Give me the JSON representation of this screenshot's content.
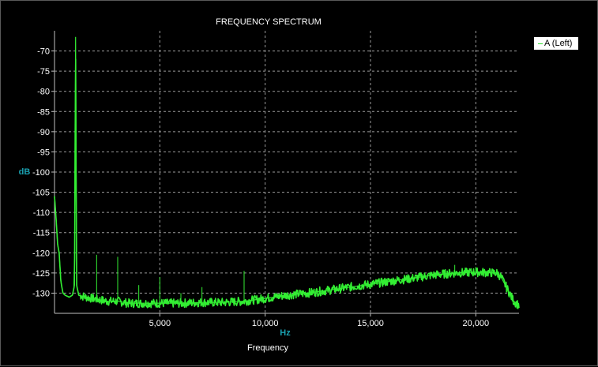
{
  "chart_data": {
    "type": "line",
    "title": "FREQUENCY SPECTRUM",
    "xlabel": "Frequency",
    "x_unit": "Hz",
    "ylabel": "dB",
    "xlim": [
      0,
      22050
    ],
    "ylim": [
      -135,
      -65
    ],
    "x_ticks": [
      5000,
      10000,
      15000,
      20000
    ],
    "x_tick_labels": [
      "5,000",
      "10,000",
      "15,000",
      "20,000"
    ],
    "y_ticks": [
      -70,
      -75,
      -80,
      -85,
      -90,
      -95,
      -100,
      -105,
      -110,
      -115,
      -120,
      -125,
      -130
    ],
    "y_tick_labels": [
      "-70",
      "-75",
      "-80",
      "-85",
      "-90",
      "-95",
      "-100",
      "-105",
      "-110",
      "-115",
      "-120",
      "-125",
      "-130"
    ],
    "grid": true,
    "legend_position": "top-right",
    "series": [
      {
        "name": "A (Left)",
        "color": "#33ee33",
        "points": [
          [
            0,
            -106
          ],
          [
            80,
            -112
          ],
          [
            150,
            -118
          ],
          [
            220,
            -120
          ],
          [
            300,
            -127
          ],
          [
            400,
            -130
          ],
          [
            500,
            -130.5
          ],
          [
            700,
            -131
          ],
          [
            850,
            -130.5
          ],
          [
            950,
            -128
          ],
          [
            1000,
            -66.5
          ],
          [
            1050,
            -128
          ],
          [
            1150,
            -130.5
          ],
          [
            1500,
            -131
          ],
          [
            2000,
            -131.5
          ],
          [
            2500,
            -132
          ],
          [
            3000,
            -132
          ],
          [
            3500,
            -132.5
          ],
          [
            4000,
            -132.5
          ],
          [
            5000,
            -132.5
          ],
          [
            6000,
            -132.5
          ],
          [
            7000,
            -132.3
          ],
          [
            8000,
            -132.3
          ],
          [
            9000,
            -132
          ],
          [
            10000,
            -131.3
          ],
          [
            11000,
            -130.5
          ],
          [
            12000,
            -130
          ],
          [
            13000,
            -129.3
          ],
          [
            14000,
            -128.5
          ],
          [
            15000,
            -127.8
          ],
          [
            16000,
            -127
          ],
          [
            17000,
            -126.3
          ],
          [
            18000,
            -125.5
          ],
          [
            19000,
            -125
          ],
          [
            20000,
            -124.8
          ],
          [
            21000,
            -125
          ],
          [
            21200,
            -126
          ],
          [
            21500,
            -129
          ],
          [
            21800,
            -132
          ],
          [
            22050,
            -133
          ]
        ],
        "spikes": [
          [
            0,
            -106
          ],
          [
            2000,
            -120.5
          ],
          [
            3000,
            -121
          ],
          [
            4000,
            -128
          ],
          [
            5000,
            -126
          ],
          [
            6000,
            -130
          ],
          [
            7000,
            -128.5
          ],
          [
            9000,
            -124.5
          ],
          [
            19000,
            -123
          ],
          [
            20000,
            -123.5
          ]
        ]
      }
    ]
  }
}
